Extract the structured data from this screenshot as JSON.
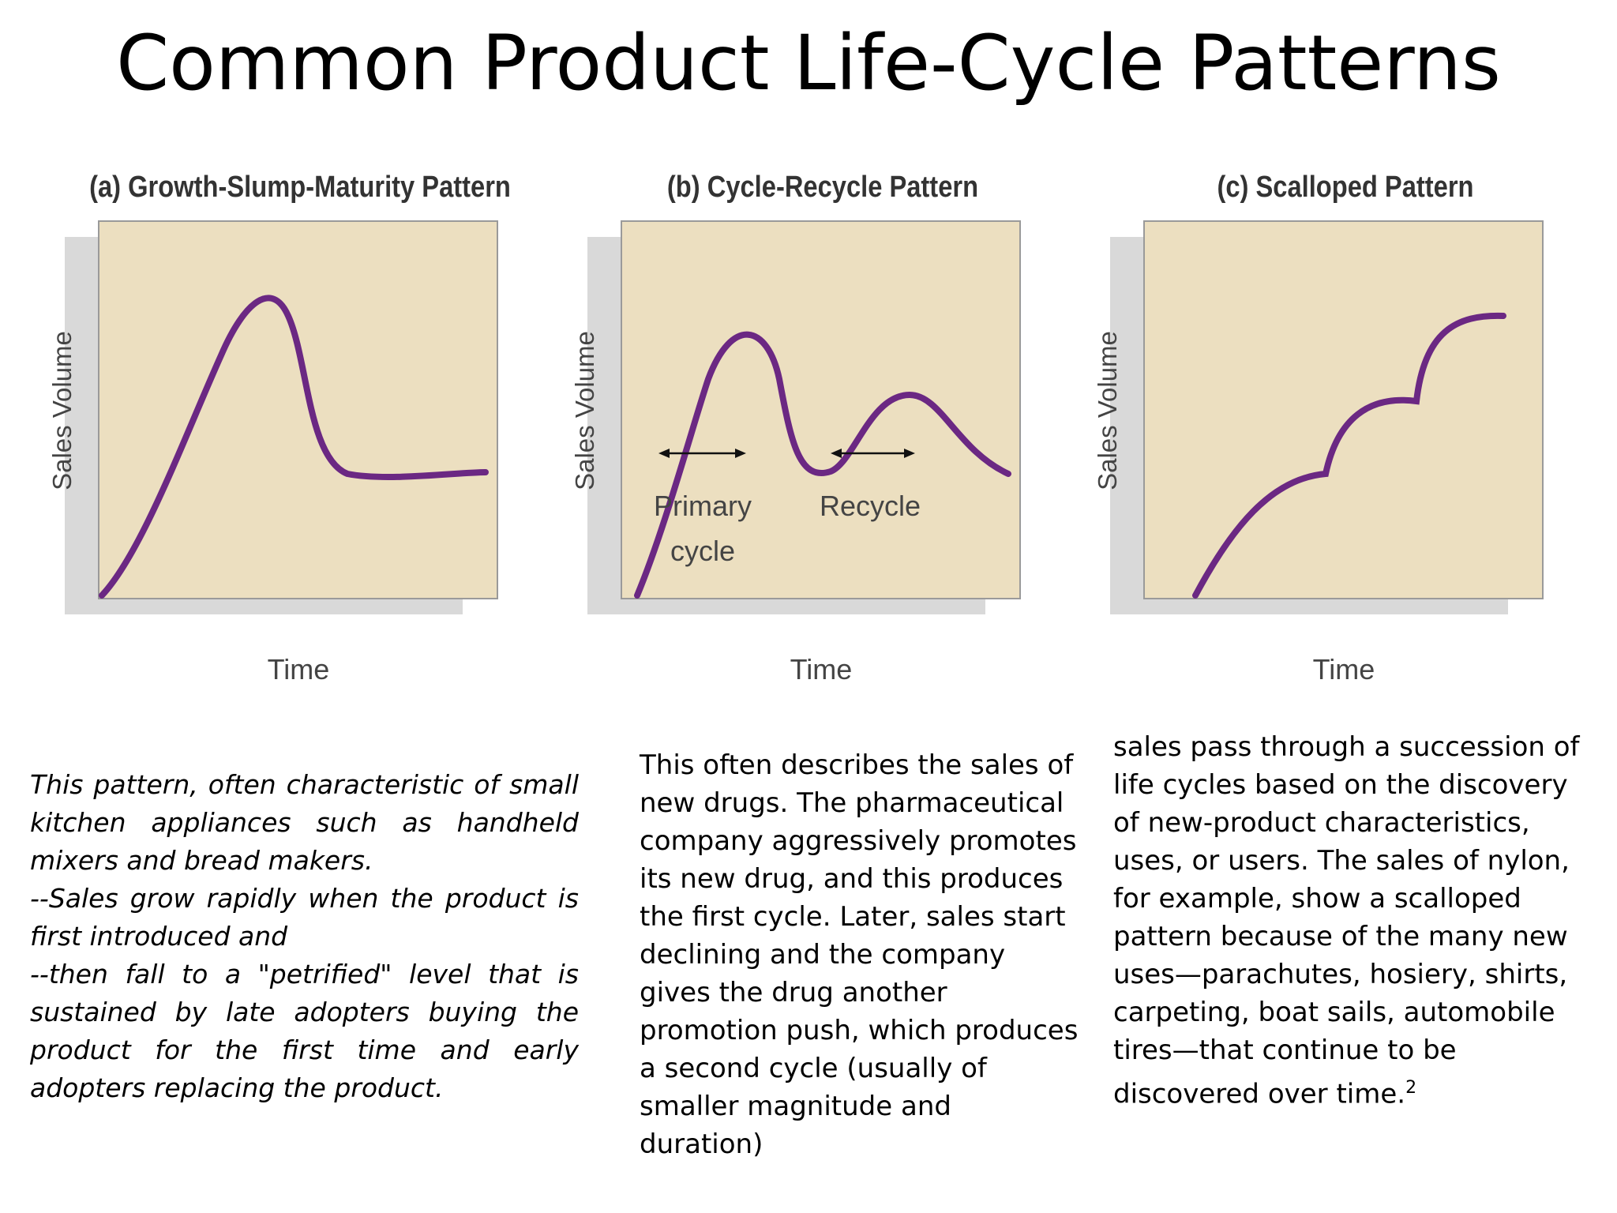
{
  "title": "Common Product Life-Cycle Patterns",
  "colors": {
    "plot_background": "#ecdfc0",
    "plot_border": "#9a9a9a",
    "plot_shadow": "#d9d9d9",
    "curve": "#6b2883",
    "axis_text": "#444444"
  },
  "panels": [
    {
      "title": "(a) Growth-Slump-Maturity Pattern",
      "xlabel": "Time",
      "ylabel": "Sales Volume",
      "annotations": []
    },
    {
      "title": "(b) Cycle-Recycle Pattern",
      "xlabel": "Time",
      "ylabel": "Sales Volume",
      "annotations": [
        {
          "line1": "Primary",
          "line2": "cycle"
        },
        {
          "line1": "Recycle",
          "line2": ""
        }
      ]
    },
    {
      "title": "(c) Scalloped Pattern",
      "xlabel": "Time",
      "ylabel": "Sales Volume",
      "annotations": []
    }
  ],
  "descriptions": {
    "a": [
      "This pattern, often characteristic of small",
      "kitchen appliances such as handheld",
      "mixers and bread makers.",
      "--Sales grow rapidly when the product is",
      "first introduced and",
      "--then fall to a \"petrified\" level that is",
      "sustained by late adopters buying the",
      "product for the first time and early",
      "adopters replacing the product."
    ],
    "b": "This often describes the sales of new drugs. The pharmaceutical company aggressively promotes its new drug, and this produces the first cycle. Later, sales start declining and the company gives the drug another promotion push, which produces a second cycle (usually of smaller magnitude and duration)",
    "c": "sales pass through a succession of life cycles based on the discovery of new-product characteristics, uses, or users. The sales of nylon, for example, show a scalloped pattern because of the many new uses—parachutes, hosiery, shirts, carpeting, boat sails, automobile tires—that continue to be discovered over time.",
    "c_footnote": "2"
  }
}
